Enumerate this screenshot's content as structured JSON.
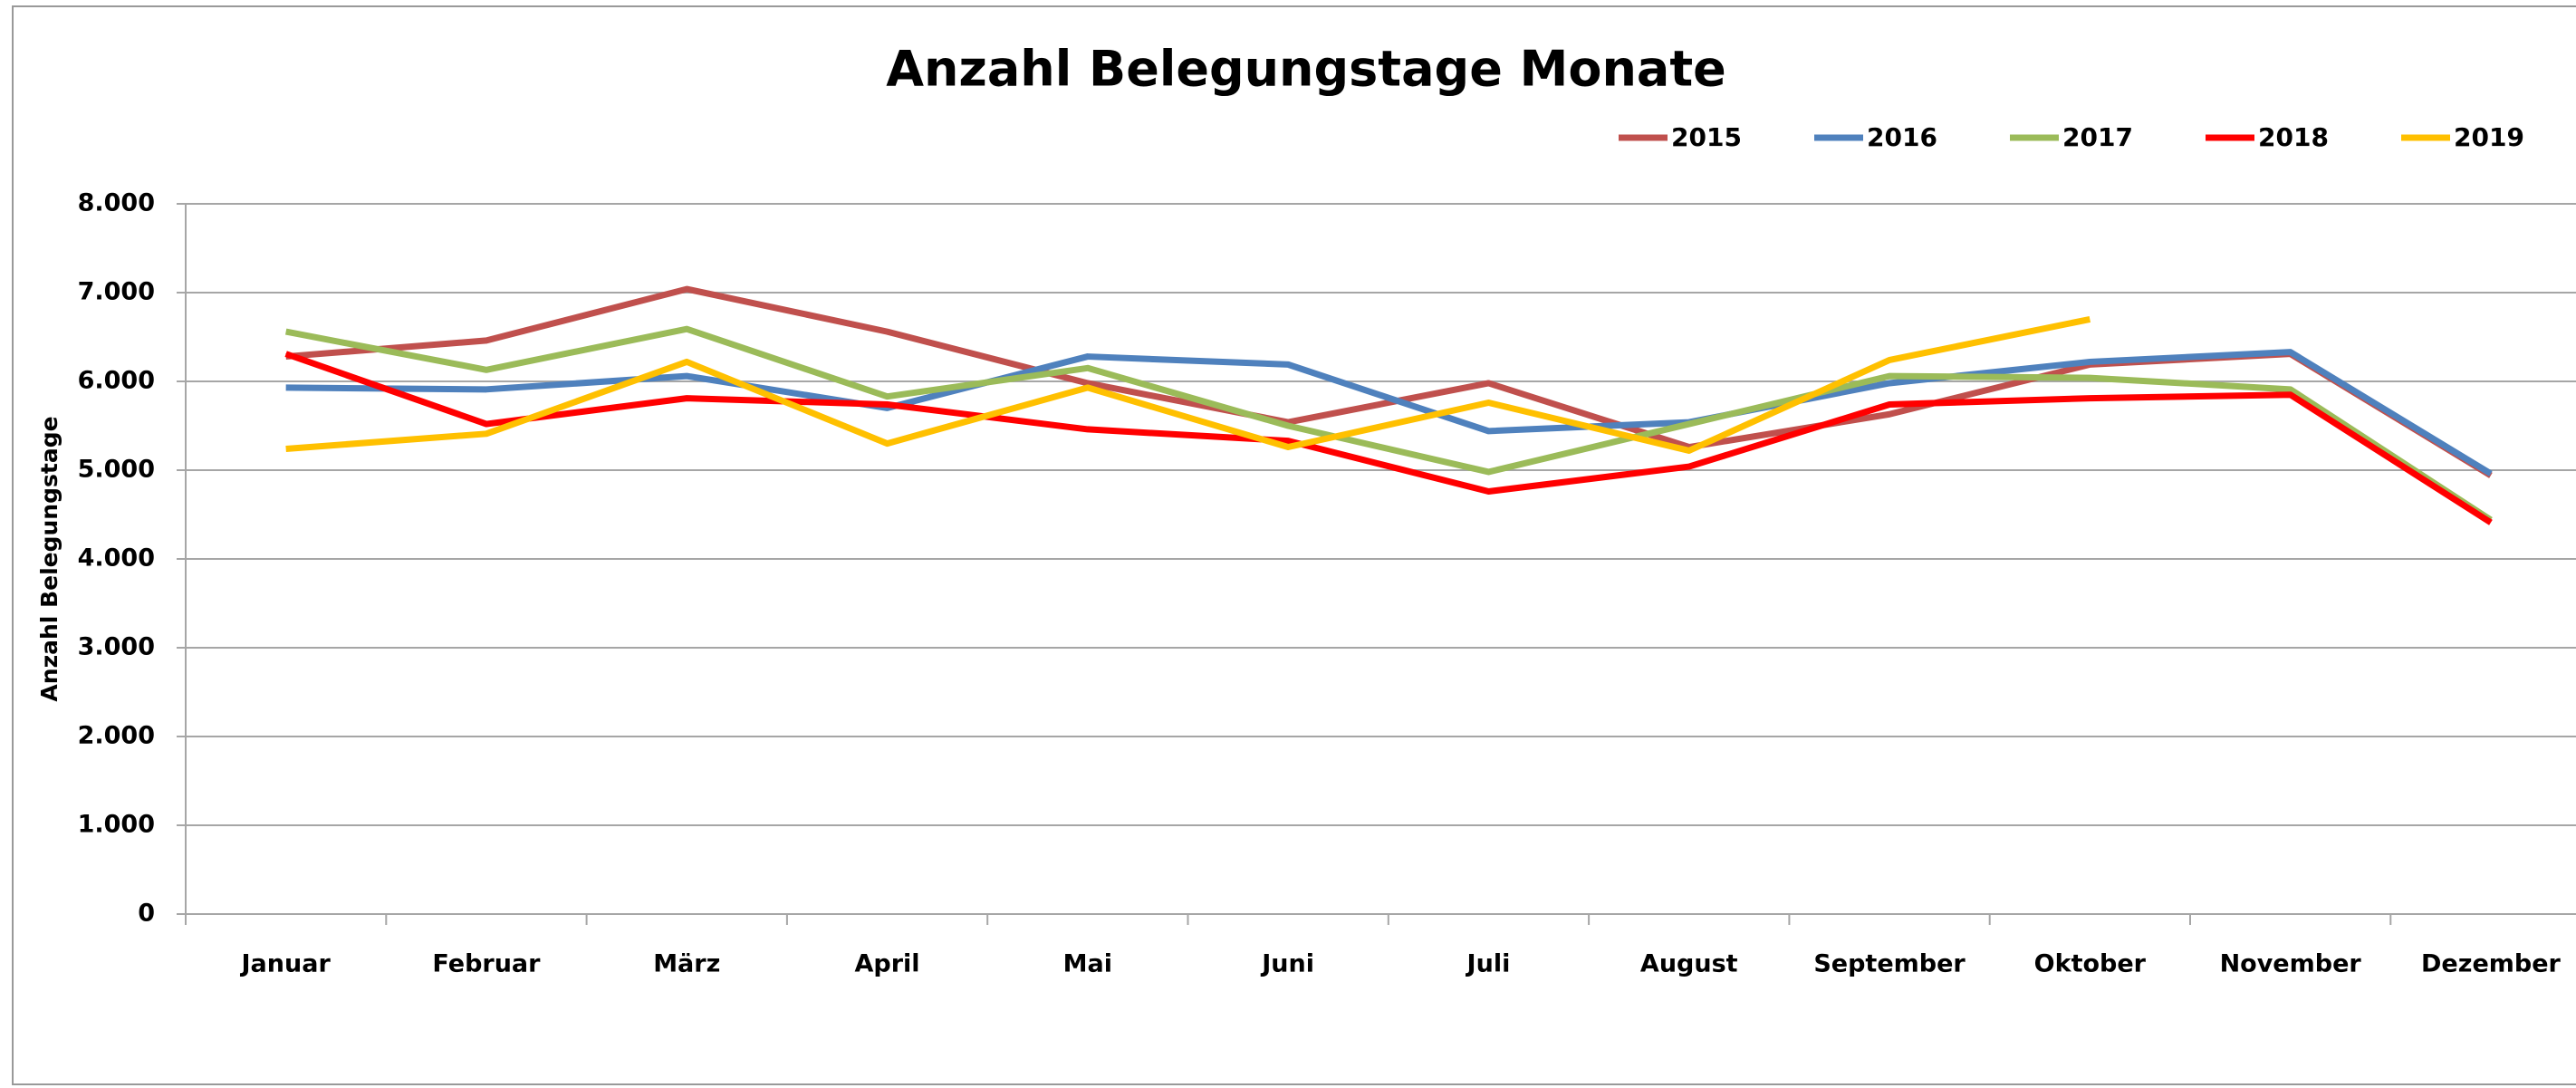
{
  "chart_data": {
    "type": "line",
    "title": "Anzahl Belegungstage Monate",
    "y_label": "Anzahl Belegungstage",
    "categories": [
      "Januar",
      "Februar",
      "März",
      "April",
      "Mai",
      "Juni",
      "Juli",
      "August",
      "September",
      "Oktober",
      "November",
      "Dezember"
    ],
    "series": [
      {
        "name": "2015",
        "color": "#c0504d",
        "values": [
          6280,
          6460,
          7040,
          6560,
          5980,
          5540,
          5980,
          5260,
          5630,
          6190,
          6310,
          4940
        ]
      },
      {
        "name": "2016",
        "color": "#4f81bd",
        "values": [
          5930,
          5910,
          6060,
          5700,
          6280,
          6190,
          5440,
          5540,
          5980,
          6220,
          6330,
          4960
        ]
      },
      {
        "name": "2017",
        "color": "#9bbb59",
        "values": [
          6560,
          6130,
          6590,
          5830,
          6150,
          5500,
          4980,
          5520,
          6060,
          6040,
          5910,
          4440
        ]
      },
      {
        "name": "2018",
        "color": "#ff0000",
        "values": [
          6310,
          5520,
          5810,
          5740,
          5460,
          5330,
          4760,
          5040,
          5740,
          5810,
          5850,
          4410
        ]
      },
      {
        "name": "2019",
        "color": "#ffc000",
        "values": [
          5240,
          5410,
          6220,
          5300,
          5930,
          5260,
          5760,
          5220,
          6240,
          6700,
          null,
          null
        ]
      }
    ],
    "ylim": [
      0,
      8000
    ],
    "yticks": [
      0,
      {
        "value": 1000,
        "label": "1.000"
      },
      {
        "value": 2000,
        "label": "2.000"
      },
      {
        "value": 3000,
        "label": "3.000"
      },
      {
        "value": 4000,
        "label": "4.000"
      },
      {
        "value": 5000,
        "label": "5.000"
      },
      {
        "value": 6000,
        "label": "6.000"
      },
      {
        "value": 7000,
        "label": "7.000"
      },
      {
        "value": 8000,
        "label": "8.000"
      }
    ],
    "grid": true,
    "legend": "top-right"
  }
}
